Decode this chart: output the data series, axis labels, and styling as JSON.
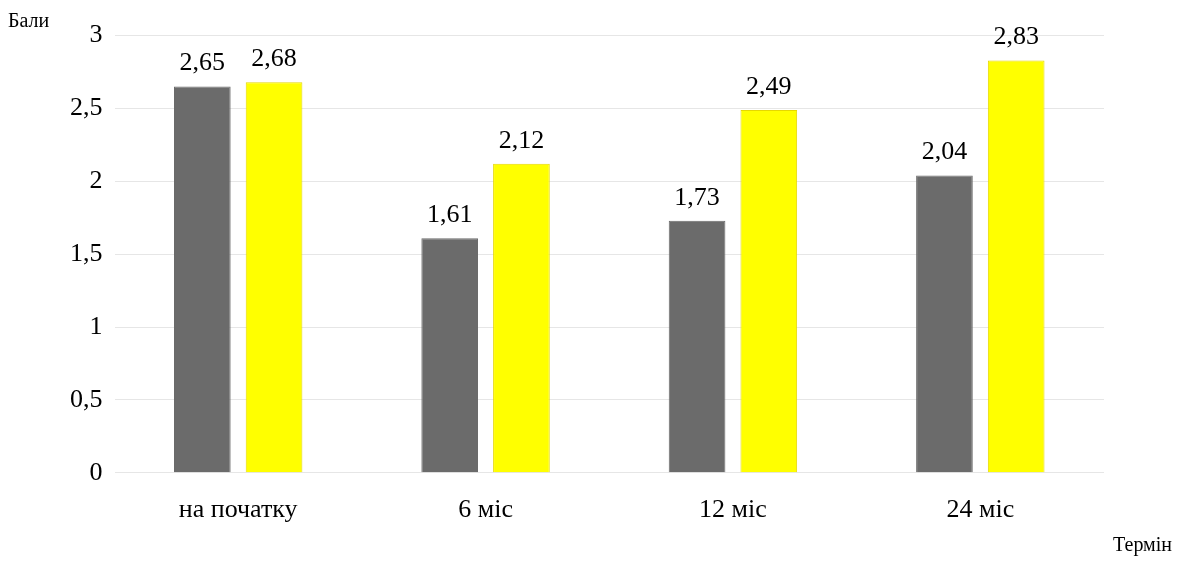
{
  "chart_data": {
    "type": "bar",
    "ylabel": "Бали",
    "xlabel": "Термін",
    "categories": [
      "на початку",
      "6 міс",
      "12 міс",
      "24 міс"
    ],
    "series": [
      {
        "color": "#6b6b6b",
        "values": [
          2.65,
          1.61,
          1.73,
          2.04
        ],
        "value_labels": [
          "2,65",
          "1,61",
          "1,73",
          "2,04"
        ]
      },
      {
        "color": "#ffff00",
        "values": [
          2.68,
          2.12,
          2.49,
          2.83
        ],
        "value_labels": [
          "2,68",
          "2,12",
          "2,49",
          "2,83"
        ]
      }
    ],
    "ylim": [
      0,
      3
    ],
    "yticks": [
      0,
      {
        "value": 0.5,
        "label": "0,5"
      },
      1,
      {
        "value": 1.5,
        "label": "1,5"
      },
      2,
      {
        "value": 2.5,
        "label": "2,5"
      },
      3
    ],
    "grid": "y",
    "legend": false
  }
}
